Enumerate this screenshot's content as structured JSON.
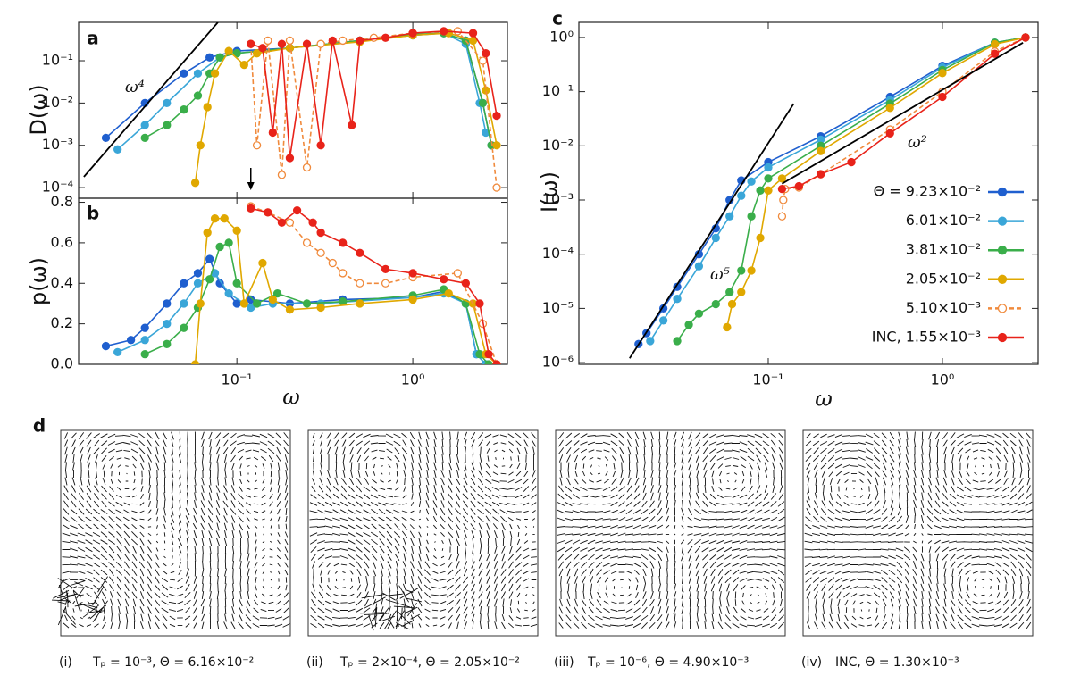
{
  "chart_data": [
    {
      "type": "line",
      "panel_label": "a",
      "ylabel": "D(ω)",
      "xlog": true,
      "ylog": true,
      "xlim": [
        0.0126,
        3.45
      ],
      "ylim": [
        5.6e-05,
        0.81
      ],
      "xticks": [
        0.1,
        1
      ],
      "xtick_labels": false,
      "yticks": [
        {
          "value": 0.0001,
          "label": "10⁻⁴"
        },
        {
          "value": 0.001,
          "label": "10⁻³"
        },
        {
          "value": 0.01,
          "label": "10⁻²"
        },
        {
          "value": 0.1,
          "label": "10⁻¹"
        }
      ],
      "arrow_x": 0.12,
      "guides": [
        {
          "label": "ω⁴",
          "x": [
            0.0135,
            0.078
          ],
          "values": [
            0.00018,
            0.81
          ]
        }
      ],
      "series": [
        {
          "color": "#1f5fcf",
          "x": [
            0.018,
            0.03,
            0.05,
            0.07,
            0.1,
            0.2,
            0.5,
            1.0,
            1.5,
            2.0,
            2.5,
            2.8
          ],
          "values": [
            0.0015,
            0.01,
            0.05,
            0.12,
            0.17,
            0.2,
            0.3,
            0.4,
            0.45,
            0.3,
            0.01,
            0.001
          ]
        },
        {
          "color": "#3aa6d8",
          "x": [
            0.021,
            0.03,
            0.04,
            0.06,
            0.08,
            0.1,
            0.2,
            0.5,
            1.0,
            1.5,
            2.0,
            2.4,
            2.6
          ],
          "values": [
            0.0008,
            0.003,
            0.01,
            0.05,
            0.12,
            0.15,
            0.2,
            0.3,
            0.4,
            0.45,
            0.25,
            0.01,
            0.002
          ]
        },
        {
          "color": "#3aae4a",
          "x": [
            0.03,
            0.04,
            0.05,
            0.06,
            0.07,
            0.08,
            0.1,
            0.2,
            0.5,
            1.0,
            1.5,
            2.0,
            2.5,
            2.8
          ],
          "values": [
            0.0015,
            0.003,
            0.007,
            0.015,
            0.05,
            0.12,
            0.15,
            0.2,
            0.3,
            0.42,
            0.45,
            0.3,
            0.01,
            0.001
          ]
        },
        {
          "color": "#e0a800",
          "x": [
            0.058,
            0.062,
            0.068,
            0.075,
            0.09,
            0.11,
            0.13,
            0.2,
            0.5,
            1.0,
            1.6,
            2.2,
            2.6,
            3.0
          ],
          "values": [
            0.00013,
            0.001,
            0.008,
            0.05,
            0.17,
            0.08,
            0.15,
            0.2,
            0.28,
            0.4,
            0.45,
            0.3,
            0.02,
            0.001
          ]
        },
        {
          "color": "#f08a3c",
          "open": true,
          "x": [
            0.12,
            0.13,
            0.15,
            0.18,
            0.2,
            0.25,
            0.3,
            0.4,
            0.6,
            1.0,
            1.8,
            2.5,
            3.0
          ],
          "values": [
            0.25,
            0.001,
            0.3,
            0.0002,
            0.3,
            0.0003,
            0.25,
            0.3,
            0.35,
            0.45,
            0.5,
            0.1,
            0.0001
          ]
        },
        {
          "color": "#e8231a",
          "x": [
            0.12,
            0.14,
            0.16,
            0.18,
            0.2,
            0.25,
            0.3,
            0.35,
            0.45,
            0.5,
            0.7,
            1.0,
            1.5,
            2.2,
            2.6,
            3.0
          ],
          "values": [
            0.25,
            0.2,
            0.002,
            0.25,
            0.0005,
            0.25,
            0.001,
            0.3,
            0.003,
            0.3,
            0.35,
            0.45,
            0.5,
            0.45,
            0.15,
            0.005
          ]
        }
      ]
    },
    {
      "type": "line",
      "panel_label": "b",
      "ylabel": "p(ω)",
      "xlabel": "ω",
      "xlog": true,
      "ylog": false,
      "xlim": [
        0.0126,
        3.45
      ],
      "ylim": [
        0,
        0.82
      ],
      "xticks": [
        {
          "value": 0.1,
          "label": "10⁻¹"
        },
        {
          "value": 1,
          "label": "10⁰"
        }
      ],
      "yticks": [
        {
          "value": 0,
          "label": "0.0"
        },
        0.2,
        0.4,
        0.6,
        0.8
      ],
      "series": [
        {
          "color": "#1f5fcf",
          "x": [
            0.018,
            0.025,
            0.03,
            0.04,
            0.05,
            0.06,
            0.07,
            0.08,
            0.1,
            0.12,
            0.2,
            0.4,
            1.0,
            1.5,
            2.0,
            2.3,
            2.6
          ],
          "values": [
            0.09,
            0.12,
            0.18,
            0.3,
            0.4,
            0.45,
            0.52,
            0.4,
            0.3,
            0.32,
            0.3,
            0.32,
            0.33,
            0.36,
            0.3,
            0.05,
            0
          ]
        },
        {
          "color": "#3aa6d8",
          "x": [
            0.021,
            0.03,
            0.04,
            0.05,
            0.06,
            0.075,
            0.09,
            0.12,
            0.16,
            0.3,
            1.0,
            1.5,
            2.0,
            2.3,
            2.6
          ],
          "values": [
            0.06,
            0.12,
            0.2,
            0.3,
            0.4,
            0.45,
            0.35,
            0.28,
            0.3,
            0.3,
            0.33,
            0.35,
            0.3,
            0.05,
            0
          ]
        },
        {
          "color": "#3aae4a",
          "x": [
            0.03,
            0.04,
            0.05,
            0.06,
            0.07,
            0.08,
            0.09,
            0.1,
            0.13,
            0.17,
            0.25,
            0.4,
            1.0,
            1.5,
            2.0,
            2.4,
            2.7
          ],
          "values": [
            0.05,
            0.1,
            0.18,
            0.28,
            0.42,
            0.58,
            0.6,
            0.4,
            0.3,
            0.35,
            0.3,
            0.31,
            0.34,
            0.37,
            0.3,
            0.05,
            0
          ]
        },
        {
          "color": "#e0a800",
          "x": [
            0.058,
            0.062,
            0.068,
            0.075,
            0.085,
            0.1,
            0.11,
            0.14,
            0.16,
            0.2,
            0.3,
            0.5,
            1.0,
            1.6,
            2.2,
            2.6,
            3.0
          ],
          "values": [
            0,
            0.3,
            0.65,
            0.72,
            0.72,
            0.66,
            0.3,
            0.5,
            0.32,
            0.27,
            0.28,
            0.3,
            0.32,
            0.35,
            0.3,
            0.05,
            0
          ]
        },
        {
          "color": "#f08a3c",
          "open": true,
          "x": [
            0.12,
            0.15,
            0.2,
            0.25,
            0.3,
            0.35,
            0.4,
            0.5,
            0.7,
            1.0,
            1.8,
            2.5,
            3.0
          ],
          "values": [
            0.78,
            0.75,
            0.7,
            0.6,
            0.55,
            0.5,
            0.45,
            0.4,
            0.4,
            0.43,
            0.45,
            0.2,
            0
          ]
        },
        {
          "color": "#e8231a",
          "x": [
            0.12,
            0.15,
            0.18,
            0.22,
            0.27,
            0.3,
            0.4,
            0.5,
            0.7,
            1.0,
            1.5,
            2.0,
            2.4,
            2.7,
            3.0
          ],
          "values": [
            0.77,
            0.75,
            0.7,
            0.76,
            0.7,
            0.65,
            0.6,
            0.55,
            0.47,
            0.45,
            0.42,
            0.4,
            0.3,
            0.05,
            0
          ]
        }
      ]
    },
    {
      "type": "line",
      "panel_label": "c",
      "ylabel": "I(ω)",
      "xlabel": "ω",
      "xlog": true,
      "ylog": true,
      "xlim": [
        0.00818,
        3.54
      ],
      "ylim": [
        9.3e-07,
        1.9
      ],
      "xticks": [
        {
          "value": 0.1,
          "label": "10⁻¹"
        },
        {
          "value": 1,
          "label": "10⁰"
        }
      ],
      "yticks": [
        {
          "value": 1e-06,
          "label": "10⁻⁶"
        },
        {
          "value": 1e-05,
          "label": "10⁻⁵"
        },
        {
          "value": 0.0001,
          "label": "10⁻⁴"
        },
        {
          "value": 0.001,
          "label": "10⁻³"
        },
        {
          "value": 0.01,
          "label": "10⁻²"
        },
        {
          "value": 0.1,
          "label": "10⁻¹"
        },
        {
          "value": 1,
          "label": "10⁰"
        }
      ],
      "guides": [
        {
          "label": "ω⁵",
          "x": [
            0.016,
            0.14
          ],
          "values": [
            1.2e-06,
            0.06
          ]
        },
        {
          "label": "ω²",
          "x": [
            0.12,
            2.9
          ],
          "values": [
            0.002,
            0.8
          ]
        }
      ],
      "series": [
        {
          "name": "Θ = 9.23×10⁻²",
          "color": "#1f5fcf",
          "x": [
            0.018,
            0.02,
            0.025,
            0.03,
            0.04,
            0.05,
            0.06,
            0.07,
            0.1,
            0.2,
            0.5,
            1.0,
            2.0,
            3.0
          ],
          "values": [
            2.2e-06,
            3.5e-06,
            1e-05,
            2.5e-05,
            0.0001,
            0.0003,
            0.001,
            0.0023,
            0.005,
            0.015,
            0.08,
            0.3,
            0.8,
            1
          ]
        },
        {
          "name": "6.01×10⁻²",
          "color": "#3aa6d8",
          "x": [
            0.021,
            0.025,
            0.03,
            0.04,
            0.05,
            0.06,
            0.07,
            0.08,
            0.1,
            0.2,
            0.5,
            1.0,
            2.0,
            3.0
          ],
          "values": [
            2.5e-06,
            6e-06,
            1.5e-05,
            6e-05,
            0.0002,
            0.0005,
            0.0012,
            0.0022,
            0.004,
            0.013,
            0.07,
            0.28,
            0.8,
            1
          ]
        },
        {
          "name": "3.81×10⁻²",
          "color": "#3aae4a",
          "x": [
            0.03,
            0.035,
            0.04,
            0.05,
            0.06,
            0.07,
            0.08,
            0.09,
            0.1,
            0.2,
            0.5,
            1.0,
            2.0,
            3.0
          ],
          "values": [
            2.5e-06,
            5e-06,
            8e-06,
            1.2e-05,
            2e-05,
            5e-05,
            0.0005,
            0.0015,
            0.0025,
            0.01,
            0.06,
            0.25,
            0.8,
            1
          ]
        },
        {
          "name": "2.05×10⁻²",
          "color": "#e0a800",
          "x": [
            0.058,
            0.062,
            0.07,
            0.08,
            0.09,
            0.1,
            0.12,
            0.2,
            0.5,
            1.0,
            2.0,
            3.0
          ],
          "values": [
            4.5e-06,
            1.2e-05,
            2e-05,
            5e-05,
            0.0002,
            0.0015,
            0.0025,
            0.008,
            0.05,
            0.22,
            0.75,
            1
          ]
        },
        {
          "name": "5.10×10⁻³",
          "color": "#f08a3c",
          "open": true,
          "x": [
            0.12,
            0.122,
            0.125,
            0.15,
            0.2,
            0.5,
            1.0,
            2.0,
            3.0
          ],
          "values": [
            0.0005,
            0.001,
            0.0016,
            0.0017,
            0.003,
            0.02,
            0.1,
            0.55,
            1
          ]
        },
        {
          "name": "INC, 1.55×10⁻³",
          "color": "#e8231a",
          "x": [
            0.12,
            0.15,
            0.2,
            0.3,
            0.5,
            1.0,
            2.0,
            3.0
          ],
          "values": [
            0.0016,
            0.0018,
            0.003,
            0.005,
            0.017,
            0.08,
            0.5,
            1
          ]
        }
      ]
    }
  ],
  "panel_d": {
    "label": "d",
    "captions": [
      {
        "index": "(i)",
        "text": "Tₚ = 10⁻³, Θ = 6.16×10⁻²"
      },
      {
        "index": "(ii)",
        "text": "Tₚ = 2×10⁻⁴, Θ = 2.05×10⁻²"
      },
      {
        "index": "(iii)",
        "text": "Tₚ = 10⁻⁶, Θ = 4.90×10⁻³"
      },
      {
        "index": "(iv)",
        "text": "INC, Θ = 1.30×10⁻³"
      }
    ]
  }
}
